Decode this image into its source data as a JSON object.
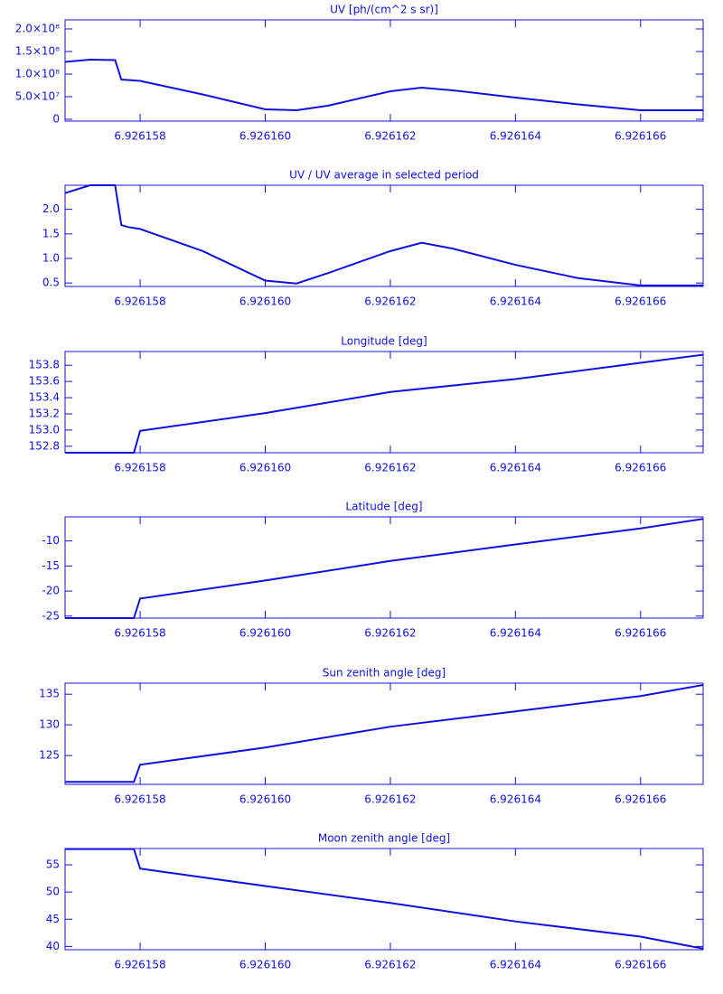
{
  "chart_data": [
    {
      "type": "line",
      "title": "UV [ph/(cm^2 s sr)]",
      "color": "#1010e0",
      "x": [
        6.9261568,
        6.9261572,
        6.9261576,
        6.9261577,
        6.9261578,
        6.926158,
        6.926159,
        6.92616,
        6.9261605,
        6.926161,
        6.926162,
        6.9261625,
        6.926163,
        6.926164,
        6.926165,
        6.926166,
        6.926167
      ],
      "values": [
        127000000,
        132000000,
        131000000,
        88000000,
        87000000,
        85000000,
        55000000,
        22000000,
        20000000,
        30000000,
        62000000,
        70000000,
        64000000,
        48000000,
        33000000,
        20000000,
        20000000
      ],
      "xlim": [
        6.9261568,
        6.926167
      ],
      "xticks": [
        6.926158,
        {
          "value": 6.92616,
          "label": "6.926160"
        },
        6.926162,
        6.926164,
        6.926166
      ],
      "ylim": [
        -4000000,
        220000000
      ],
      "yticks": [
        0,
        {
          "value": 50000000,
          "label": "5.0×10⁷"
        },
        {
          "value": 100000000,
          "label": "1.0×10⁸"
        },
        {
          "value": 150000000,
          "label": "1.5×10⁸"
        },
        {
          "value": 200000000,
          "label": "2.0×10⁸"
        }
      ]
    },
    {
      "type": "line",
      "title": "UV / UV average in selected period",
      "color": "#1010e0",
      "x": [
        6.9261568,
        6.9261572,
        6.9261576,
        6.9261577,
        6.9261578,
        6.926158,
        6.926159,
        6.92616,
        6.9261605,
        6.926161,
        6.926162,
        6.9261625,
        6.926163,
        6.926164,
        6.926165,
        6.926166,
        6.926167
      ],
      "values": [
        2.33,
        2.49,
        2.49,
        1.68,
        1.64,
        1.6,
        1.15,
        0.55,
        0.49,
        0.7,
        1.15,
        1.32,
        1.2,
        0.87,
        0.6,
        0.45,
        0.45
      ],
      "xlim": [
        6.9261568,
        6.926167
      ],
      "xticks": [
        6.926158,
        {
          "value": 6.92616,
          "label": "6.926160"
        },
        6.926162,
        6.926164,
        6.926166
      ],
      "ylim": [
        0.43,
        2.49
      ],
      "yticks": [
        0.5,
        {
          "value": 1,
          "label": "1.0"
        },
        1.5,
        {
          "value": 2,
          "label": "2.0"
        }
      ]
    },
    {
      "type": "line",
      "title": "Longitude [deg]",
      "color": "#1010e0",
      "x": [
        6.9261568,
        6.9261578,
        6.9261579,
        6.926158,
        6.92616,
        6.926162,
        6.926164,
        6.926166,
        6.926167
      ],
      "values": [
        152.72,
        152.72,
        152.72,
        152.99,
        153.21,
        153.47,
        153.63,
        153.83,
        153.93
      ],
      "xlim": [
        6.9261568,
        6.926167
      ],
      "xticks": [
        6.926158,
        {
          "value": 6.92616,
          "label": "6.926160"
        },
        6.926162,
        6.926164,
        6.926166
      ],
      "ylim": [
        152.72,
        153.97
      ],
      "yticks": [
        152.8,
        {
          "value": 153,
          "label": "153.0"
        },
        153.2,
        153.4,
        153.6,
        153.8
      ]
    },
    {
      "type": "line",
      "title": "Latitude [deg]",
      "color": "#1010e0",
      "x": [
        6.9261568,
        6.9261578,
        6.9261579,
        6.926158,
        6.92616,
        6.926162,
        6.926164,
        6.926166,
        6.926167
      ],
      "values": [
        -25.4,
        -25.4,
        -25.4,
        -21.5,
        -17.9,
        -14,
        -10.7,
        -7.5,
        -5.6
      ],
      "xlim": [
        6.9261568,
        6.926167
      ],
      "xticks": [
        6.926158,
        {
          "value": 6.92616,
          "label": "6.926160"
        },
        6.926162,
        6.926164,
        6.926166
      ],
      "ylim": [
        -25.4,
        -5.2
      ],
      "yticks": [
        -25,
        -20,
        -15,
        -10
      ]
    },
    {
      "type": "line",
      "title": "Sun zenith angle [deg]",
      "color": "#1010e0",
      "x": [
        6.9261568,
        6.9261578,
        6.9261579,
        6.926158,
        6.92616,
        6.926162,
        6.926164,
        6.926166,
        6.926167
      ],
      "values": [
        120.7,
        120.7,
        120.7,
        123.5,
        126.3,
        129.7,
        132.2,
        134.7,
        136.5
      ],
      "xlim": [
        6.9261568,
        6.926167
      ],
      "xticks": [
        6.926158,
        {
          "value": 6.92616,
          "label": "6.926160"
        },
        6.926162,
        6.926164,
        6.926166
      ],
      "ylim": [
        120.3,
        136.8
      ],
      "yticks": [
        125,
        130,
        135
      ]
    },
    {
      "type": "line",
      "title": "Moon zenith angle [deg]",
      "color": "#1010e0",
      "x": [
        6.9261568,
        6.9261578,
        6.9261579,
        6.926158,
        6.92616,
        6.926162,
        6.926164,
        6.926166,
        6.926167
      ],
      "values": [
        57.9,
        57.9,
        57.9,
        54.3,
        51.1,
        48,
        44.6,
        41.8,
        39.6
      ],
      "xlim": [
        6.9261568,
        6.926167
      ],
      "xticks": [
        6.926158,
        {
          "value": 6.92616,
          "label": "6.926160"
        },
        6.926162,
        6.926164,
        6.926166
      ],
      "ylim": [
        39.4,
        58
      ],
      "yticks": [
        40,
        45,
        50,
        55
      ]
    }
  ]
}
